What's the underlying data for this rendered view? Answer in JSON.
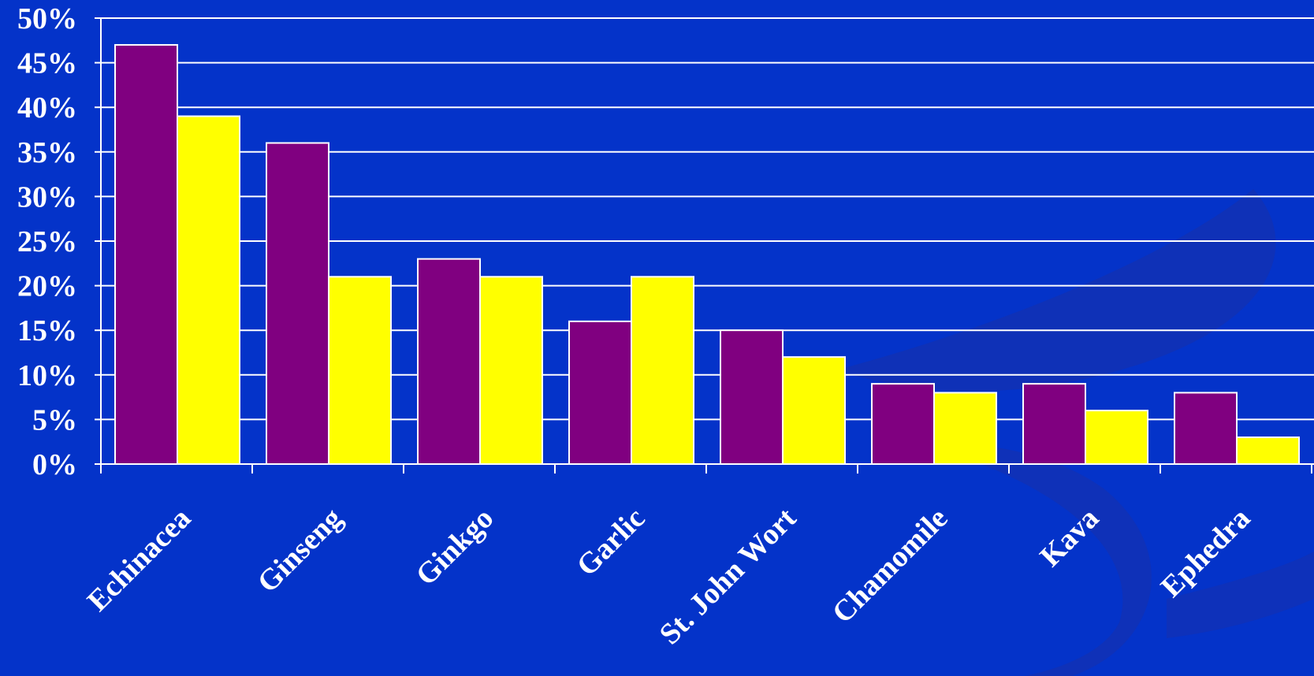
{
  "colors": {
    "background": "#0433c9",
    "swirl": "#1a2fa8",
    "grid": "#ffffff",
    "bar_outline": "#ffffff"
  },
  "chart_data": {
    "type": "bar",
    "title": "",
    "xlabel": "",
    "ylabel": "",
    "ylim": [
      0,
      50
    ],
    "ytick_step": 5,
    "ytick_labels": [
      "0%",
      "5%",
      "10%",
      "15%",
      "20%",
      "25%",
      "30%",
      "35%",
      "40%",
      "45%",
      "50%"
    ],
    "grid": true,
    "legend": "none",
    "categories": [
      "Echinacea",
      "Ginseng",
      "Ginkgo",
      "Garlic",
      "St. John Wort",
      "Chamomile",
      "Kava",
      "Ephedra"
    ],
    "series": [
      {
        "color": "#800080",
        "values": [
          47,
          36,
          23,
          16,
          15,
          9,
          9,
          8
        ]
      },
      {
        "color": "#ffff00",
        "values": [
          39,
          21,
          21,
          21,
          12,
          8,
          6,
          3
        ]
      }
    ]
  }
}
